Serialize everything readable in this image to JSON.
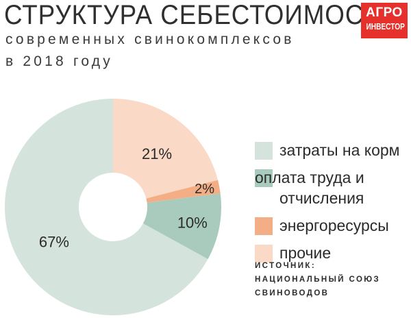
{
  "header": {
    "title": "СТРУКТУРА СЕБЕСТОИМОСТИ",
    "subtitle_line1": "современных свинокомплексов",
    "subtitle_line2": "в 2018 году"
  },
  "logo": {
    "line1": "АГРО",
    "line2": "ИНВЕСТОР"
  },
  "chart_data": {
    "type": "pie",
    "donut": true,
    "series": [
      {
        "name": "затраты на корм",
        "value": 67,
        "label": "67%",
        "color": "#d4e3dc"
      },
      {
        "name": "оплата труда и отчисления",
        "value": 10,
        "label": "10%",
        "color": "#a9cbbe"
      },
      {
        "name": "энергоресурсы",
        "value": 2,
        "label": "2%",
        "color": "#f4ae86"
      },
      {
        "name": "прочие",
        "value": 21,
        "label": "21%",
        "color": "#fad9c6"
      }
    ],
    "legend_position": "right"
  },
  "legend": [
    {
      "label": "затраты на корм",
      "color": "#d4e3dc"
    },
    {
      "label": "оплата труда и отчисления",
      "color": "#a9cbbe"
    },
    {
      "label": "энергоресурсы",
      "color": "#f4ae86"
    },
    {
      "label": "прочие",
      "color": "#fad9c6"
    }
  ],
  "source": {
    "line1": "ИСТОЧНИК:",
    "line2": "НАЦИОНАЛЬНЫЙ СОЮЗ",
    "line3": "СВИНОВОДОВ"
  }
}
